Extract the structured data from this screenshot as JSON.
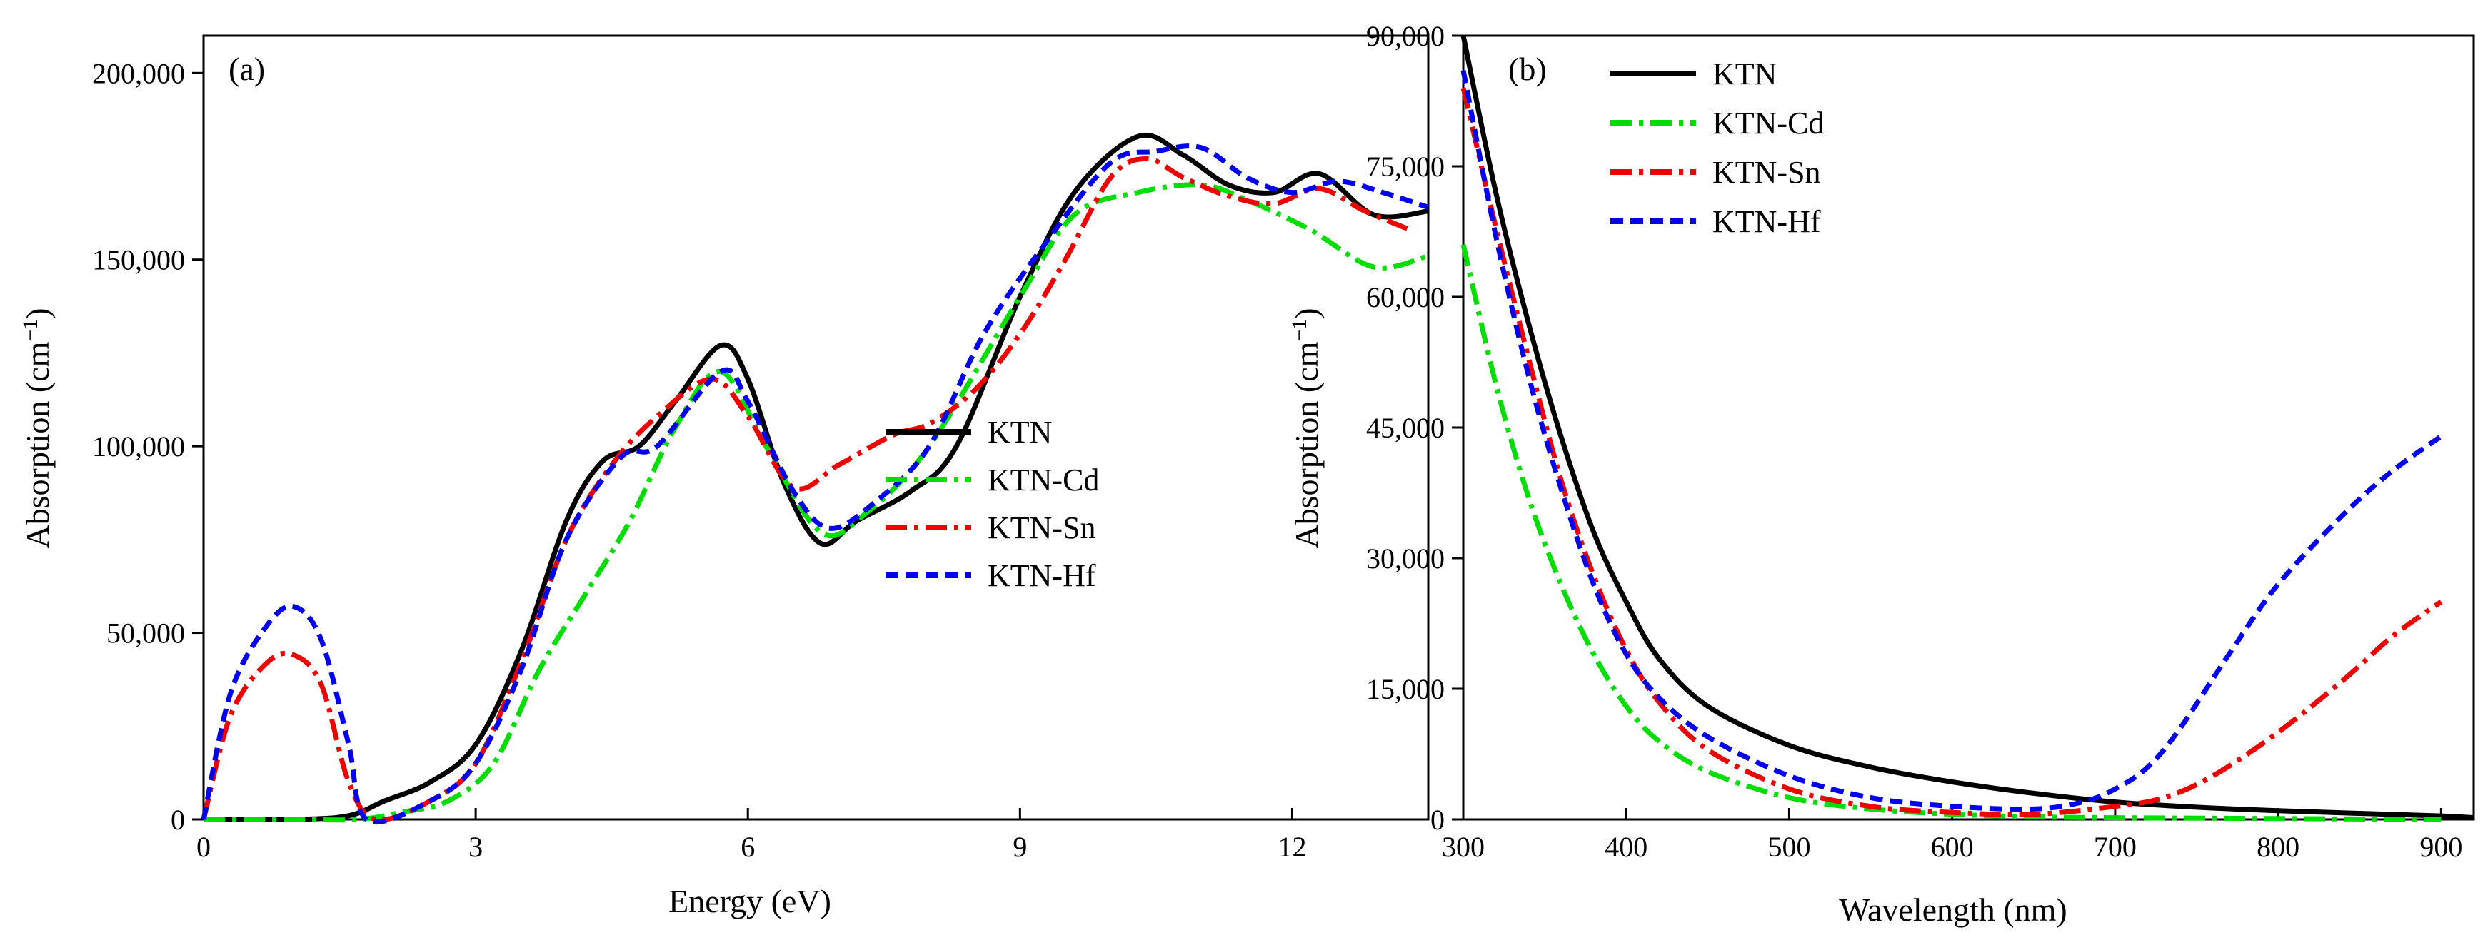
{
  "chart_data": [
    {
      "panel": "(a)",
      "type": "line",
      "xlabel": "Energy (eV)",
      "ylabel": {
        "main": "Absorption (cm",
        "sup": "−1",
        "close": ")"
      },
      "xlim": [
        0,
        13.5
      ],
      "ylim": [
        0,
        210000
      ],
      "xticks": [
        0,
        3,
        6,
        9,
        12
      ],
      "xtick_labels": [
        "0",
        "3",
        "6",
        "9",
        "12"
      ],
      "yticks": [
        0,
        50000,
        100000,
        150000,
        200000
      ],
      "ytick_labels": [
        "0",
        "50,000",
        "100,000",
        "150,000",
        "200,000"
      ],
      "legend_position": "center-right",
      "series": [
        {
          "name": "KTN",
          "color": "#000000",
          "dash": "solid",
          "x": [
            0,
            1,
            1.6,
            2,
            2.5,
            3,
            3.5,
            4,
            4.4,
            4.8,
            5.2,
            5.7,
            6.0,
            6.4,
            6.8,
            7.2,
            7.8,
            8.3,
            9.0,
            9.6,
            10.3,
            10.8,
            11.3,
            11.8,
            12.3,
            12.9,
            13.5
          ],
          "y": [
            0,
            0,
            1000,
            5000,
            10000,
            20000,
            45000,
            80000,
            96000,
            100000,
            112000,
            127000,
            118000,
            90000,
            74000,
            80000,
            88000,
            100000,
            140000,
            168000,
            183000,
            178000,
            170000,
            168000,
            173000,
            162000,
            163000
          ]
        },
        {
          "name": "KTN-Cd",
          "color": "#00dd00",
          "dash": "dashdot",
          "x": [
            0,
            1,
            1.7,
            2.2,
            2.7,
            3.2,
            3.7,
            4.2,
            4.7,
            5.2,
            5.7,
            6.2,
            6.8,
            7.3,
            8.0,
            9.0,
            9.6,
            10.3,
            11.0,
            11.5,
            12.2,
            12.9,
            13.5
          ],
          "y": [
            0,
            0,
            0,
            2000,
            5000,
            15000,
            40000,
            60000,
            80000,
            105000,
            120000,
            100000,
            77000,
            82000,
            100000,
            140000,
            162000,
            168000,
            170000,
            166000,
            158000,
            148000,
            151000
          ]
        },
        {
          "name": "KTN-Sn",
          "color": "#ee0000",
          "dash": "dashdot",
          "x": [
            0,
            0.3,
            0.7,
            1.0,
            1.3,
            1.6,
            1.9,
            2.5,
            3.0,
            3.5,
            4.0,
            4.5,
            5.0,
            5.6,
            6.0,
            6.5,
            7.0,
            7.6,
            8.0,
            8.5,
            9.0,
            9.5,
            10.0,
            10.4,
            10.8,
            11.3,
            11.8,
            12.3,
            12.8,
            13.3
          ],
          "y": [
            0,
            28000,
            42000,
            44000,
            36000,
            10000,
            0,
            5000,
            15000,
            42000,
            75000,
            95000,
            108000,
            118000,
            108000,
            89000,
            95000,
            103000,
            106000,
            115000,
            130000,
            150000,
            172000,
            177000,
            172000,
            167000,
            165000,
            169000,
            163000,
            158000
          ]
        },
        {
          "name": "KTN-Hf",
          "color": "#0000ee",
          "dash": "dashed",
          "x": [
            0,
            0.3,
            0.7,
            1.0,
            1.3,
            1.6,
            1.8,
            2.5,
            3.0,
            3.5,
            4.0,
            4.6,
            5.0,
            5.7,
            6.0,
            6.5,
            6.9,
            7.4,
            8.0,
            8.6,
            9.3,
            10.0,
            10.5,
            11.0,
            11.5,
            12.0,
            12.5,
            13.0,
            13.5
          ],
          "y": [
            0,
            34000,
            52000,
            57000,
            48000,
            20000,
            0,
            5000,
            15000,
            40000,
            75000,
            97000,
            100000,
            120000,
            112000,
            88000,
            78000,
            85000,
            100000,
            130000,
            155000,
            176000,
            179000,
            180000,
            172000,
            168000,
            171000,
            168000,
            164000
          ]
        }
      ]
    },
    {
      "panel": "(b)",
      "type": "line",
      "xlabel": "Wavelength (nm)",
      "ylabel": {
        "main": "Absorption (cm",
        "sup": "−1",
        "close": ")"
      },
      "xlim": [
        300,
        920
      ],
      "ylim": [
        0,
        90000
      ],
      "xticks": [
        300,
        400,
        500,
        600,
        700,
        800,
        900
      ],
      "xtick_labels": [
        "300",
        "400",
        "500",
        "600",
        "700",
        "800",
        "900"
      ],
      "yticks": [
        0,
        15000,
        30000,
        45000,
        60000,
        75000,
        90000
      ],
      "ytick_labels": [
        "0",
        "15,000",
        "30,000",
        "45,000",
        "60,000",
        "75,000",
        "90,000"
      ],
      "legend_position": "top-left",
      "series": [
        {
          "name": "KTN",
          "color": "#000000",
          "dash": "solid",
          "x": [
            300,
            320,
            340,
            360,
            380,
            400,
            420,
            450,
            500,
            550,
            600,
            650,
            700,
            750,
            800,
            850,
            900,
            920
          ],
          "y": [
            90000,
            72000,
            57000,
            44000,
            33000,
            25000,
            18500,
            13000,
            8500,
            6000,
            4300,
            3000,
            2000,
            1400,
            1000,
            700,
            400,
            200
          ]
        },
        {
          "name": "KTN-Cd",
          "color": "#00dd00",
          "dash": "dashdot",
          "x": [
            300,
            320,
            340,
            360,
            380,
            400,
            420,
            450,
            500,
            550,
            600,
            650,
            700,
            800,
            900
          ],
          "y": [
            66000,
            50000,
            37000,
            27000,
            19000,
            13000,
            9000,
            5500,
            2500,
            1200,
            600,
            300,
            200,
            100,
            0
          ]
        },
        {
          "name": "KTN-Sn",
          "color": "#ee0000",
          "dash": "dashdot",
          "x": [
            300,
            320,
            340,
            360,
            380,
            400,
            420,
            450,
            500,
            550,
            600,
            650,
            700,
            730,
            760,
            800,
            840,
            870,
            900
          ],
          "y": [
            84000,
            68000,
            53000,
            39000,
            28000,
            19500,
            13500,
            8000,
            3500,
            1500,
            800,
            600,
            1500,
            2500,
            5000,
            10000,
            16000,
            21000,
            25000
          ]
        },
        {
          "name": "KTN-Hf",
          "color": "#0000ee",
          "dash": "dashed",
          "x": [
            300,
            320,
            340,
            360,
            380,
            400,
            420,
            450,
            500,
            550,
            600,
            650,
            680,
            700,
            720,
            740,
            770,
            800,
            840,
            870,
            900
          ],
          "y": [
            86000,
            67000,
            51000,
            38000,
            27000,
            19000,
            14000,
            9500,
            5000,
            2500,
            1500,
            1200,
            2000,
            3500,
            6000,
            10500,
            19000,
            27000,
            35000,
            40000,
            44000
          ]
        }
      ]
    }
  ]
}
